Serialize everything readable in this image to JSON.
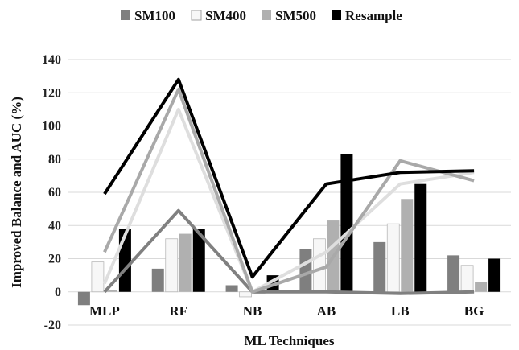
{
  "chart_data": {
    "type": "bar",
    "categories": [
      "MLP",
      "RF",
      "NB",
      "AB",
      "LB",
      "BG"
    ],
    "xlabel": "ML Techniques",
    "ylabel": "Improved Balance and AUC (%)",
    "ylim": [
      -20,
      140
    ],
    "yticks": [
      -20,
      0,
      20,
      40,
      60,
      80,
      100,
      120,
      140
    ],
    "grid": "horizontal",
    "legend": "top",
    "series": [
      {
        "name": "SM100",
        "color": "#7f7f7f",
        "bars": [
          -8,
          14,
          4,
          26,
          30,
          22
        ],
        "line": [
          0,
          49,
          0,
          0,
          -1,
          0
        ]
      },
      {
        "name": "SM400",
        "color": "#f7f7f7",
        "bars": [
          18,
          32,
          -3,
          32,
          41,
          16
        ],
        "line": [
          5,
          110,
          0,
          24,
          65,
          72
        ]
      },
      {
        "name": "SM500",
        "color": "#b0b0b0",
        "bars": [
          1,
          35,
          -1,
          43,
          56,
          6
        ],
        "line": [
          24,
          122,
          0,
          15,
          79,
          67
        ]
      },
      {
        "name": "Resample",
        "color": "#000000",
        "bars": [
          38,
          38,
          10,
          83,
          65,
          20
        ],
        "line": [
          59,
          128,
          9,
          65,
          72,
          73
        ]
      }
    ]
  }
}
